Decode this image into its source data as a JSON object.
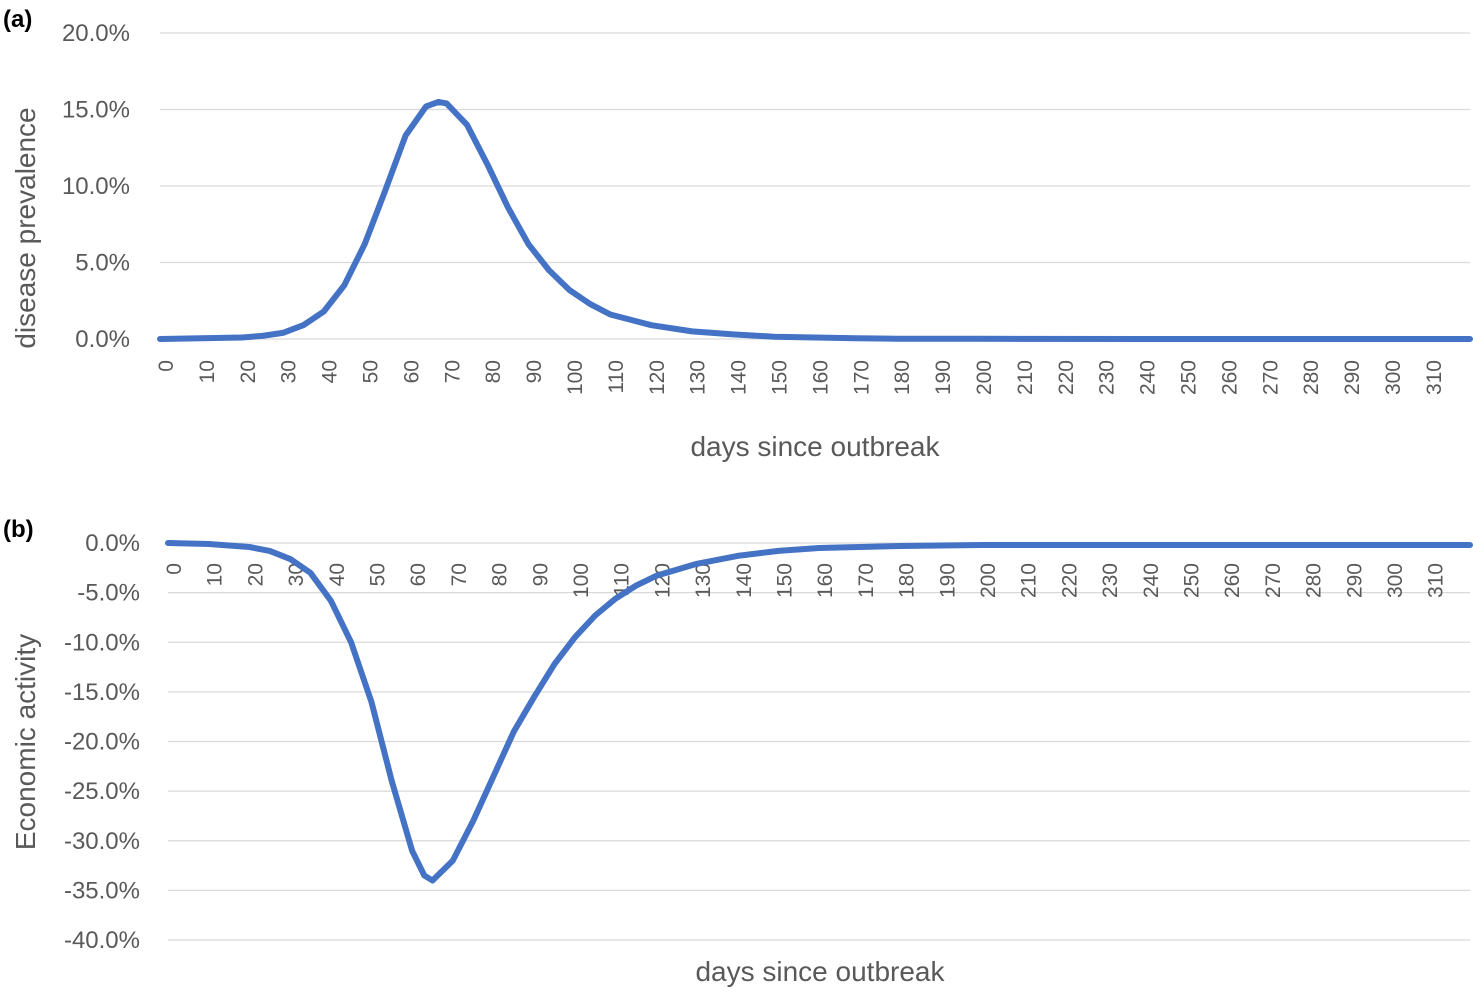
{
  "chart_data": [
    {
      "panel_label": "(a)",
      "type": "line",
      "xlabel": "days since outbreak",
      "ylabel": "disease prevalence",
      "ylim": [
        0,
        0.2
      ],
      "xlim": [
        0,
        320
      ],
      "yticks": [
        "0.0%",
        "5.0%",
        "10.0%",
        "15.0%",
        "20.0%"
      ],
      "xticks": [
        "0",
        "10",
        "20",
        "30",
        "40",
        "50",
        "60",
        "70",
        "80",
        "90",
        "100",
        "110",
        "120",
        "130",
        "140",
        "150",
        "160",
        "170",
        "180",
        "190",
        "200",
        "210",
        "220",
        "230",
        "240",
        "250",
        "260",
        "270",
        "280",
        "290",
        "300",
        "310"
      ],
      "grid": true,
      "color": "#4472c4",
      "series": [
        {
          "x": [
            0,
            10,
            20,
            25,
            30,
            35,
            40,
            45,
            50,
            55,
            60,
            65,
            68,
            70,
            75,
            80,
            85,
            90,
            95,
            100,
            105,
            110,
            120,
            130,
            140,
            150,
            160,
            170,
            180,
            200,
            250,
            300,
            320
          ],
          "values": [
            0.0,
            0.0005,
            0.001,
            0.002,
            0.004,
            0.009,
            0.018,
            0.035,
            0.062,
            0.097,
            0.133,
            0.152,
            0.155,
            0.154,
            0.14,
            0.114,
            0.086,
            0.062,
            0.045,
            0.032,
            0.023,
            0.016,
            0.009,
            0.005,
            0.003,
            0.0015,
            0.001,
            0.0005,
            0.0002,
            0.0001,
            0.0,
            0.0,
            0.0
          ]
        }
      ]
    },
    {
      "panel_label": "(b)",
      "type": "line",
      "xlabel": "days since outbreak",
      "ylabel": "Economic activity",
      "ylim": [
        -0.4,
        0
      ],
      "xlim": [
        0,
        320
      ],
      "yticks": [
        "-40.0%",
        "-35.0%",
        "-30.0%",
        "-25.0%",
        "-20.0%",
        "-15.0%",
        "-10.0%",
        "-5.0%",
        "0.0%"
      ],
      "xticks": [
        "0",
        "10",
        "20",
        "30",
        "40",
        "50",
        "60",
        "70",
        "80",
        "90",
        "100",
        "110",
        "120",
        "130",
        "140",
        "150",
        "160",
        "170",
        "180",
        "190",
        "200",
        "210",
        "220",
        "230",
        "240",
        "250",
        "260",
        "270",
        "280",
        "290",
        "300",
        "310"
      ],
      "grid": true,
      "color": "#4472c4",
      "series": [
        {
          "x": [
            0,
            10,
            20,
            25,
            30,
            35,
            40,
            45,
            50,
            55,
            60,
            63,
            65,
            70,
            75,
            80,
            85,
            90,
            95,
            100,
            105,
            110,
            115,
            120,
            130,
            140,
            150,
            160,
            170,
            180,
            200,
            220,
            250,
            320
          ],
          "values": [
            0.0,
            -0.001,
            -0.004,
            -0.008,
            -0.016,
            -0.03,
            -0.058,
            -0.1,
            -0.16,
            -0.24,
            -0.31,
            -0.335,
            -0.34,
            -0.32,
            -0.28,
            -0.235,
            -0.19,
            -0.155,
            -0.122,
            -0.095,
            -0.073,
            -0.056,
            -0.043,
            -0.033,
            -0.021,
            -0.013,
            -0.008,
            -0.005,
            -0.004,
            -0.003,
            -0.002,
            -0.002,
            -0.002,
            -0.002
          ]
        }
      ]
    }
  ]
}
